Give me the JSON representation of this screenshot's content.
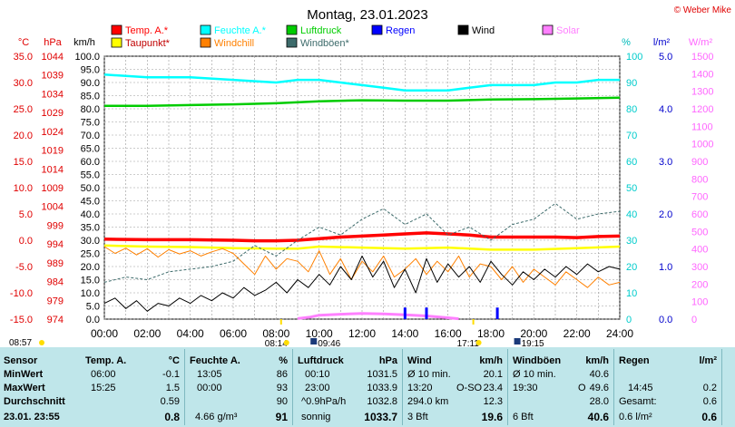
{
  "title": "Montag, 23.01.2023",
  "copyright": "© Weber Mike",
  "legend": [
    {
      "label": "Temp. A.*",
      "color": "#ff0000"
    },
    {
      "label": "Feuchte A.*",
      "color": "#00ffff"
    },
    {
      "label": "Luftdruck",
      "color": "#00cc00"
    },
    {
      "label": "Regen",
      "color": "#0000ff"
    },
    {
      "label": "Wind",
      "color": "#000000"
    },
    {
      "label": "Solar",
      "color": "#ff80ff"
    },
    {
      "label": "Taupunkt*",
      "color": "#ffff00"
    },
    {
      "label": "Windchill",
      "color": "#ff8000"
    },
    {
      "label": "Windböen*",
      "color": "#3d6b6b"
    }
  ],
  "units": {
    "temp": "°C",
    "press": "hPa",
    "wind": "km/h",
    "hum": "%",
    "rain": "l/m²",
    "solar": "W/m²"
  },
  "chart_data": {
    "type": "line",
    "x": [
      "00:00",
      "02:00",
      "04:00",
      "06:00",
      "08:00",
      "10:00",
      "12:00",
      "14:00",
      "16:00",
      "18:00",
      "20:00",
      "22:00",
      "24:00"
    ],
    "axes": {
      "temp": {
        "ticks": [
          "35.0",
          "30.0",
          "25.0",
          "20.0",
          "15.0",
          "10.0",
          "5.0",
          "0.0",
          "-5.0",
          "-10.0",
          "-15.0"
        ],
        "range": [
          -15,
          35
        ]
      },
      "press": {
        "ticks": [
          "1044",
          "1039",
          "1034",
          "1029",
          "1024",
          "1019",
          "1014",
          "1009",
          "1004",
          "999",
          "994",
          "989",
          "984",
          "979",
          "974"
        ],
        "range": [
          974,
          1045
        ]
      },
      "wind": {
        "ticks": [
          "100.0",
          "95.0",
          "90.0",
          "85.0",
          "80.0",
          "75.0",
          "70.0",
          "65.0",
          "60.0",
          "55.0",
          "50.0",
          "45.0",
          "40.0",
          "35.0",
          "30.0",
          "25.0",
          "20.0",
          "15.0",
          "10.0",
          "5.0",
          "0.0"
        ],
        "range": [
          0,
          100
        ]
      },
      "hum": {
        "ticks": [
          "100",
          "90",
          "80",
          "70",
          "60",
          "50",
          "40",
          "30",
          "20",
          "10",
          "0"
        ],
        "range": [
          0,
          100
        ]
      },
      "rain": {
        "ticks": [
          "5.0",
          "4.0",
          "3.0",
          "2.0",
          "1.0",
          "0.0"
        ],
        "range": [
          0,
          5
        ]
      },
      "solar": {
        "ticks": [
          "1500",
          "1400",
          "1300",
          "1200",
          "1100",
          "1000",
          "900",
          "800",
          "700",
          "600",
          "500",
          "400",
          "300",
          "200",
          "100",
          "0"
        ],
        "range": [
          0,
          1500
        ]
      }
    },
    "series": [
      {
        "name": "Temp. A.*",
        "axis": "temp",
        "color": "#ff0000",
        "width": 3.5,
        "points": [
          [
            0,
            0.2
          ],
          [
            2,
            0.1
          ],
          [
            4,
            0.1
          ],
          [
            6,
            0.0
          ],
          [
            7,
            -0.1
          ],
          [
            8,
            -0.1
          ],
          [
            9,
            0.0
          ],
          [
            10,
            0.3
          ],
          [
            11,
            0.6
          ],
          [
            12,
            0.8
          ],
          [
            13,
            1.0
          ],
          [
            14,
            1.2
          ],
          [
            15,
            1.4
          ],
          [
            16,
            1.2
          ],
          [
            17,
            1.0
          ],
          [
            18,
            0.6
          ],
          [
            19,
            0.6
          ],
          [
            20,
            0.6
          ],
          [
            21,
            0.6
          ],
          [
            22,
            0.5
          ],
          [
            23,
            0.7
          ],
          [
            24,
            0.8
          ]
        ]
      },
      {
        "name": "Taupunkt*",
        "axis": "temp",
        "color": "#ffff00",
        "width": 2.5,
        "points": [
          [
            0,
            -1.0
          ],
          [
            2,
            -1.2
          ],
          [
            4,
            -1.3
          ],
          [
            6,
            -1.5
          ],
          [
            8,
            -1.6
          ],
          [
            9,
            -1.6
          ],
          [
            10,
            -1.2
          ],
          [
            12,
            -1.4
          ],
          [
            14,
            -1.6
          ],
          [
            16,
            -1.4
          ],
          [
            18,
            -1.8
          ],
          [
            20,
            -1.8
          ],
          [
            22,
            -1.5
          ],
          [
            24,
            -1.2
          ]
        ]
      },
      {
        "name": "Feuchte A.*",
        "axis": "hum",
        "color": "#00ffff",
        "width": 2.5,
        "points": [
          [
            0,
            93
          ],
          [
            2,
            92
          ],
          [
            4,
            92
          ],
          [
            6,
            91
          ],
          [
            8,
            90
          ],
          [
            9,
            91
          ],
          [
            10,
            91
          ],
          [
            11,
            90
          ],
          [
            12,
            89
          ],
          [
            13,
            88
          ],
          [
            14,
            87
          ],
          [
            15,
            87
          ],
          [
            16,
            87
          ],
          [
            17,
            88
          ],
          [
            18,
            89
          ],
          [
            19,
            89
          ],
          [
            20,
            89
          ],
          [
            21,
            90
          ],
          [
            22,
            90
          ],
          [
            23,
            91
          ],
          [
            24,
            91
          ]
        ]
      },
      {
        "name": "Luftdruck",
        "axis": "press",
        "color": "#00cc00",
        "width": 2.5,
        "points": [
          [
            0,
            1031.6
          ],
          [
            2,
            1031.6
          ],
          [
            4,
            1031.8
          ],
          [
            6,
            1032.0
          ],
          [
            8,
            1032.3
          ],
          [
            10,
            1032.8
          ],
          [
            12,
            1033.1
          ],
          [
            14,
            1033.0
          ],
          [
            16,
            1033.0
          ],
          [
            18,
            1033.3
          ],
          [
            20,
            1033.4
          ],
          [
            22,
            1033.6
          ],
          [
            24,
            1033.8
          ]
        ]
      },
      {
        "name": "Windböen*",
        "axis": "wind",
        "color": "#3d6b6b",
        "width": 1,
        "dash": true,
        "points": [
          [
            0,
            14
          ],
          [
            1,
            16
          ],
          [
            2,
            15
          ],
          [
            3,
            18
          ],
          [
            4,
            19
          ],
          [
            5,
            20
          ],
          [
            6,
            22
          ],
          [
            7,
            28
          ],
          [
            8,
            24
          ],
          [
            9,
            30
          ],
          [
            10,
            35
          ],
          [
            11,
            32
          ],
          [
            12,
            38
          ],
          [
            13,
            42
          ],
          [
            14,
            36
          ],
          [
            15,
            40
          ],
          [
            16,
            32
          ],
          [
            17,
            35
          ],
          [
            18,
            30
          ],
          [
            19,
            36
          ],
          [
            20,
            38
          ],
          [
            21,
            44
          ],
          [
            22,
            38
          ],
          [
            23,
            40
          ],
          [
            24,
            41
          ]
        ]
      },
      {
        "name": "Windchill",
        "axis": "temp",
        "color": "#ff8000",
        "width": 1,
        "points": [
          [
            0,
            -1.2
          ],
          [
            0.5,
            -2.5
          ],
          [
            1,
            -1.5
          ],
          [
            1.5,
            -2.8
          ],
          [
            2,
            -1.6
          ],
          [
            2.5,
            -3.2
          ],
          [
            3,
            -1.8
          ],
          [
            3.5,
            -2.6
          ],
          [
            4,
            -2.0
          ],
          [
            4.5,
            -3.0
          ],
          [
            5,
            -2.2
          ],
          [
            5.5,
            -1.6
          ],
          [
            6,
            -2.5
          ],
          [
            6.5,
            -4.5
          ],
          [
            7,
            -6.5
          ],
          [
            7.5,
            -3.0
          ],
          [
            8,
            -5.5
          ],
          [
            8.5,
            -3.5
          ],
          [
            9,
            -4.0
          ],
          [
            9.5,
            -6.0
          ],
          [
            10,
            -2.0
          ],
          [
            10.5,
            -6.5
          ],
          [
            11,
            -3.5
          ],
          [
            11.5,
            -7.5
          ],
          [
            12,
            -4.0
          ],
          [
            12.5,
            -6.0
          ],
          [
            13,
            -3.0
          ],
          [
            13.5,
            -7.0
          ],
          [
            14,
            -5.5
          ],
          [
            14.5,
            -3.5
          ],
          [
            15,
            -6.5
          ],
          [
            15.5,
            -4.0
          ],
          [
            16,
            -6.0
          ],
          [
            16.5,
            -3.0
          ],
          [
            17,
            -7.0
          ],
          [
            17.5,
            -4.5
          ],
          [
            18,
            -5.0
          ],
          [
            18.5,
            -7.5
          ],
          [
            19,
            -5.0
          ],
          [
            19.5,
            -8.0
          ],
          [
            20,
            -5.5
          ],
          [
            20.5,
            -7.0
          ],
          [
            21,
            -8.5
          ],
          [
            21.5,
            -6.0
          ],
          [
            22,
            -7.5
          ],
          [
            22.5,
            -9.0
          ],
          [
            23,
            -7.0
          ],
          [
            23.5,
            -8.5
          ],
          [
            24,
            -8.0
          ]
        ]
      },
      {
        "name": "Wind",
        "axis": "wind",
        "color": "#000000",
        "width": 1,
        "points": [
          [
            0,
            6
          ],
          [
            0.5,
            8
          ],
          [
            1,
            4
          ],
          [
            1.5,
            7
          ],
          [
            2,
            3
          ],
          [
            2.5,
            6
          ],
          [
            3,
            5
          ],
          [
            3.5,
            8
          ],
          [
            4,
            6
          ],
          [
            4.5,
            9
          ],
          [
            5,
            7
          ],
          [
            5.5,
            10
          ],
          [
            6,
            8
          ],
          [
            6.5,
            12
          ],
          [
            7,
            9
          ],
          [
            7.5,
            11
          ],
          [
            8,
            14
          ],
          [
            8.5,
            10
          ],
          [
            9,
            15
          ],
          [
            9.5,
            12
          ],
          [
            10,
            17
          ],
          [
            10.5,
            13
          ],
          [
            11,
            20
          ],
          [
            11.5,
            15
          ],
          [
            12,
            24
          ],
          [
            12.5,
            16
          ],
          [
            13,
            22
          ],
          [
            13.5,
            12
          ],
          [
            14,
            19
          ],
          [
            14.5,
            10
          ],
          [
            15,
            23
          ],
          [
            15.5,
            14
          ],
          [
            16,
            21
          ],
          [
            16.5,
            16
          ],
          [
            17,
            20
          ],
          [
            17.5,
            14
          ],
          [
            18,
            22
          ],
          [
            18.5,
            17
          ],
          [
            19,
            13
          ],
          [
            19.5,
            18
          ],
          [
            20,
            15
          ],
          [
            20.5,
            19
          ],
          [
            21,
            16
          ],
          [
            21.5,
            20
          ],
          [
            22,
            17
          ],
          [
            22.5,
            21
          ],
          [
            23,
            18
          ],
          [
            23.5,
            20
          ],
          [
            24,
            19
          ]
        ]
      },
      {
        "name": "Solar",
        "axis": "solar",
        "color": "#ff80ff",
        "width": 3,
        "points": [
          [
            9,
            3
          ],
          [
            9.6,
            12
          ],
          [
            10,
            22
          ],
          [
            11,
            28
          ],
          [
            12,
            32
          ],
          [
            13,
            30
          ],
          [
            14,
            25
          ],
          [
            15,
            18
          ],
          [
            16,
            8
          ],
          [
            16.5,
            2
          ]
        ]
      }
    ],
    "rain_events": [
      [
        14.0,
        0.22
      ],
      [
        15.0,
        0.22
      ],
      [
        18.3,
        0.22
      ]
    ],
    "markers": {
      "sunrise": {
        "time": "08:14",
        "x": 8.23
      },
      "sunset": {
        "time": "17:11",
        "x": 17.18
      },
      "moonrise": {
        "time": "09:46",
        "x": 9.77
      },
      "moonset": {
        "time": "19:15",
        "x": 19.25
      },
      "sunrise_left": "08:57"
    }
  },
  "table": {
    "labels": [
      "Sensor",
      "MinWert",
      "MaxWert",
      "Durchschnitt",
      "23.01. 23:55"
    ],
    "temp": {
      "title": "Temp. A.",
      "unit": "°C",
      "min_t": "06:00",
      "min_v": "-0.1",
      "max_t": "15:25",
      "max_v": "1.5",
      "avg": "0.59",
      "now": "0.8"
    },
    "hum": {
      "title": "Feuchte A.",
      "unit": "%",
      "min_t": "13:05",
      "min_v": "86",
      "max_t": "00:00",
      "max_v": "93",
      "avg": "90",
      "extra": "4.66 g/m³",
      "now": "91"
    },
    "press": {
      "title": "Luftdruck",
      "unit": "hPa",
      "min_t": "00:10",
      "min_v": "1031.5",
      "max_t": "23:00",
      "max_v": "1033.9",
      "trend": "^0.9hPa/h",
      "avg": "1032.8",
      "cond": "sonnig",
      "now": "1033.7"
    },
    "wind": {
      "title": "Wind",
      "unit": "km/h",
      "r1l": "Ø 10 min.",
      "r1v": "20.1",
      "r2t": "13:20",
      "r2d": "O-SO",
      "r2v": "23.4",
      "r3l": "294.0 km",
      "r3v": "12.3",
      "r4l": "3 Bft",
      "now": "19.6"
    },
    "gust": {
      "title": "Windböen",
      "unit": "km/h",
      "r1l": "Ø 10 min.",
      "r1v": "40.6",
      "r2t": "19:30",
      "r2d": "O",
      "r2v": "49.6",
      "avg": "28.0",
      "r4l": "6 Bft",
      "now": "40.6"
    },
    "rain": {
      "title": "Regen",
      "unit": "l/m²",
      "r2t": "14:45",
      "r2v": "0.2",
      "r3l": "Gesamt:",
      "r3v": "0.6",
      "now": "0.6 l/m²",
      "nowv": "0.6"
    }
  }
}
